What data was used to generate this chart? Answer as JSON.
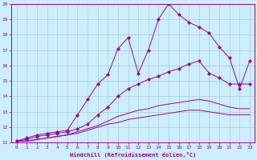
{
  "xlabel": "Windchill (Refroidissement éolien,°C)",
  "bg_color": "#cceeff",
  "grid_color": "#aacccc",
  "line_color": "#990099",
  "xlim": [
    -0.5,
    23.5
  ],
  "ylim": [
    11,
    20
  ],
  "xticks": [
    0,
    1,
    2,
    3,
    4,
    5,
    6,
    7,
    8,
    9,
    10,
    11,
    12,
    13,
    14,
    15,
    16,
    17,
    18,
    19,
    20,
    21,
    22,
    23
  ],
  "yticks": [
    11,
    12,
    13,
    14,
    15,
    16,
    17,
    18,
    19,
    20
  ],
  "line1_x": [
    0,
    1,
    2,
    3,
    4,
    5,
    6,
    7,
    8,
    9,
    10,
    11,
    12,
    13,
    14,
    15,
    16,
    17,
    18,
    19,
    20,
    21,
    22,
    23
  ],
  "line1_y": [
    11.1,
    11.3,
    11.5,
    11.6,
    11.7,
    11.8,
    12.8,
    13.8,
    14.8,
    15.4,
    17.1,
    17.8,
    15.5,
    17.0,
    19.0,
    20.0,
    19.3,
    18.8,
    18.5,
    18.1,
    17.2,
    16.5,
    14.5,
    16.3
  ],
  "line2_x": [
    0,
    1,
    2,
    3,
    4,
    5,
    6,
    7,
    8,
    9,
    10,
    11,
    12,
    13,
    14,
    15,
    16,
    17,
    18,
    19,
    20,
    21,
    22,
    23
  ],
  "line2_y": [
    11.1,
    11.2,
    11.4,
    11.5,
    11.6,
    11.7,
    11.9,
    12.2,
    12.8,
    13.3,
    14.0,
    14.5,
    14.8,
    15.1,
    15.3,
    15.6,
    15.8,
    16.1,
    16.3,
    15.5,
    15.2,
    14.8,
    14.8,
    14.8
  ],
  "line3_x": [
    0,
    1,
    2,
    3,
    4,
    5,
    6,
    7,
    8,
    9,
    10,
    11,
    12,
    13,
    14,
    15,
    16,
    17,
    18,
    19,
    20,
    21,
    22,
    23
  ],
  "line3_y": [
    11.1,
    11.1,
    11.2,
    11.3,
    11.4,
    11.5,
    11.7,
    11.9,
    12.1,
    12.4,
    12.7,
    12.9,
    13.1,
    13.2,
    13.4,
    13.5,
    13.6,
    13.7,
    13.8,
    13.7,
    13.5,
    13.3,
    13.2,
    13.2
  ],
  "line4_x": [
    0,
    1,
    2,
    3,
    4,
    5,
    6,
    7,
    8,
    9,
    10,
    11,
    12,
    13,
    14,
    15,
    16,
    17,
    18,
    19,
    20,
    21,
    22,
    23
  ],
  "line4_y": [
    11.1,
    11.1,
    11.2,
    11.3,
    11.4,
    11.5,
    11.6,
    11.8,
    12.0,
    12.2,
    12.3,
    12.5,
    12.6,
    12.7,
    12.8,
    12.9,
    13.0,
    13.1,
    13.1,
    13.0,
    12.9,
    12.8,
    12.8,
    12.8
  ]
}
